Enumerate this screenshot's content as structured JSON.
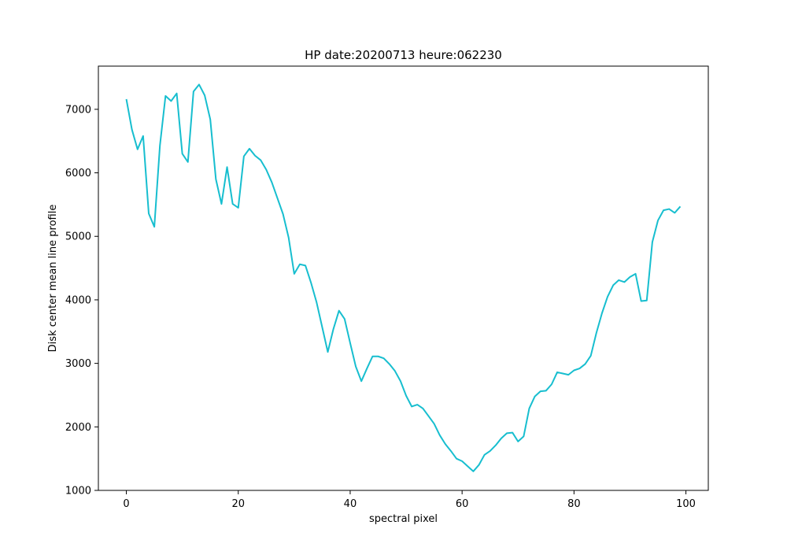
{
  "chart_data": {
    "type": "line",
    "title": "HP date:20200713 heure:062230",
    "xlabel": "spectral pixel",
    "ylabel": "Disk center mean line profile",
    "xlim": [
      -5,
      104
    ],
    "ylim": [
      1000,
      7680
    ],
    "xticks": [
      0,
      20,
      40,
      60,
      80,
      100
    ],
    "yticks": [
      1000,
      2000,
      3000,
      4000,
      5000,
      6000,
      7000
    ],
    "grid": false,
    "series": [
      {
        "color": "#17becf",
        "x": [
          0,
          1,
          2,
          3,
          4,
          5,
          6,
          7,
          8,
          9,
          10,
          11,
          12,
          13,
          14,
          15,
          16,
          17,
          18,
          19,
          20,
          21,
          22,
          23,
          24,
          25,
          26,
          27,
          28,
          29,
          30,
          31,
          32,
          33,
          34,
          35,
          36,
          37,
          38,
          39,
          40,
          41,
          42,
          43,
          44,
          45,
          46,
          47,
          48,
          49,
          50,
          51,
          52,
          53,
          54,
          55,
          56,
          57,
          58,
          59,
          60,
          61,
          62,
          63,
          64,
          65,
          66,
          67,
          68,
          69,
          70,
          71,
          72,
          73,
          74,
          75,
          76,
          77,
          78,
          79,
          80,
          81,
          82,
          83,
          84,
          85,
          86,
          87,
          88,
          89,
          90,
          91,
          92,
          93,
          94,
          95,
          96,
          97,
          98,
          99
        ],
        "values": [
          7160,
          6680,
          6370,
          6580,
          5360,
          5150,
          6430,
          7210,
          7130,
          7250,
          6300,
          6170,
          7280,
          7390,
          7220,
          6840,
          5900,
          5510,
          6090,
          5510,
          5450,
          6260,
          6380,
          6270,
          6200,
          6050,
          5850,
          5600,
          5350,
          4980,
          4410,
          4560,
          4540,
          4270,
          3960,
          3570,
          3180,
          3540,
          3830,
          3700,
          3320,
          2950,
          2720,
          2920,
          3110,
          3110,
          3080,
          2990,
          2880,
          2720,
          2490,
          2320,
          2350,
          2290,
          2170,
          2050,
          1870,
          1730,
          1620,
          1500,
          1460,
          1380,
          1300,
          1400,
          1560,
          1620,
          1710,
          1820,
          1900,
          1910,
          1770,
          1850,
          2290,
          2480,
          2560,
          2570,
          2670,
          2860,
          2840,
          2820,
          2890,
          2920,
          2990,
          3120,
          3480,
          3790,
          4050,
          4230,
          4310,
          4280,
          4360,
          4410,
          3980,
          3990,
          4910,
          5250,
          5410,
          5430,
          5370,
          5470
        ]
      }
    ]
  }
}
